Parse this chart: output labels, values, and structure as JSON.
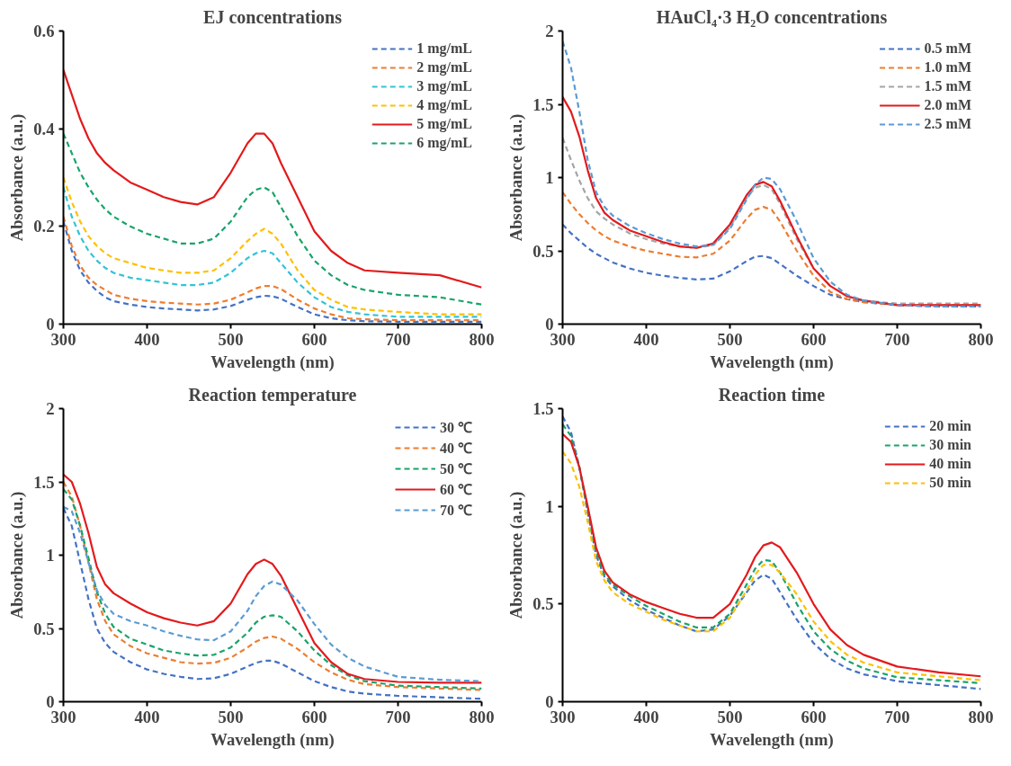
{
  "chart_data": [
    {
      "type": "line",
      "title": "EJ concentrations",
      "xlabel": "Wavelength (nm)",
      "ylabel": "Absorbance (a.u.)",
      "xlim": [
        300,
        800
      ],
      "xticks": [
        300,
        400,
        500,
        600,
        700,
        800
      ],
      "ylim": [
        0,
        0.6
      ],
      "yticks": [
        0,
        0.2,
        0.4,
        0.6
      ],
      "grid": false,
      "legend": "top right",
      "marker": "none",
      "x": [
        300,
        310,
        320,
        330,
        340,
        350,
        360,
        380,
        400,
        420,
        440,
        460,
        480,
        500,
        520,
        530,
        540,
        550,
        560,
        580,
        600,
        620,
        640,
        660,
        700,
        750,
        800
      ],
      "series": [
        {
          "name": "1 mg/mL",
          "color": "#4472c4",
          "line_style": "dashed",
          "values": [
            0.21,
            0.15,
            0.11,
            0.085,
            0.068,
            0.055,
            0.047,
            0.04,
            0.035,
            0.032,
            0.03,
            0.028,
            0.03,
            0.037,
            0.05,
            0.055,
            0.058,
            0.057,
            0.052,
            0.035,
            0.02,
            0.012,
            0.008,
            0.006,
            0.005,
            0.005,
            0.005
          ]
        },
        {
          "name": "2 mg/mL",
          "color": "#ed7d31",
          "line_style": "dashed",
          "values": [
            0.22,
            0.16,
            0.12,
            0.095,
            0.08,
            0.07,
            0.06,
            0.052,
            0.047,
            0.044,
            0.042,
            0.04,
            0.042,
            0.05,
            0.065,
            0.073,
            0.078,
            0.078,
            0.072,
            0.05,
            0.032,
            0.02,
            0.012,
            0.01,
            0.008,
            0.008,
            0.008
          ]
        },
        {
          "name": "3 mg/mL",
          "color": "#33c3d6",
          "line_style": "dashed",
          "values": [
            0.28,
            0.22,
            0.18,
            0.15,
            0.13,
            0.115,
            0.105,
            0.095,
            0.09,
            0.085,
            0.08,
            0.08,
            0.085,
            0.105,
            0.135,
            0.145,
            0.15,
            0.145,
            0.125,
            0.085,
            0.055,
            0.035,
            0.025,
            0.02,
            0.015,
            0.015,
            0.015
          ]
        },
        {
          "name": "4 mg/mL",
          "color": "#ffc000",
          "line_style": "dashed",
          "values": [
            0.3,
            0.25,
            0.21,
            0.18,
            0.16,
            0.145,
            0.135,
            0.125,
            0.115,
            0.11,
            0.105,
            0.105,
            0.11,
            0.135,
            0.17,
            0.185,
            0.195,
            0.185,
            0.165,
            0.11,
            0.07,
            0.05,
            0.035,
            0.03,
            0.025,
            0.02,
            0.02
          ]
        },
        {
          "name": "5 mg/mL",
          "color": "#e31a1c",
          "line_style": "solid",
          "values": [
            0.52,
            0.47,
            0.42,
            0.38,
            0.35,
            0.33,
            0.315,
            0.29,
            0.275,
            0.26,
            0.25,
            0.245,
            0.26,
            0.31,
            0.37,
            0.39,
            0.39,
            0.37,
            0.33,
            0.26,
            0.19,
            0.15,
            0.125,
            0.11,
            0.105,
            0.1,
            0.075
          ]
        },
        {
          "name": "6 mg/mL",
          "color": "#1aa36a",
          "line_style": "dashed",
          "values": [
            0.39,
            0.35,
            0.31,
            0.28,
            0.255,
            0.235,
            0.22,
            0.2,
            0.185,
            0.175,
            0.165,
            0.165,
            0.175,
            0.21,
            0.26,
            0.275,
            0.28,
            0.27,
            0.24,
            0.18,
            0.13,
            0.1,
            0.08,
            0.07,
            0.06,
            0.055,
            0.04
          ]
        }
      ]
    },
    {
      "type": "line",
      "title": "HAuCl₄·3 H₂O concentrations",
      "xlabel": "Wavelength (nm)",
      "ylabel": "Absorbance (a.u.)",
      "xlim": [
        300,
        800
      ],
      "xticks": [
        300,
        400,
        500,
        600,
        700,
        800
      ],
      "ylim": [
        0,
        2
      ],
      "yticks": [
        0,
        0.5,
        1,
        1.5,
        2
      ],
      "grid": false,
      "legend": "top right",
      "marker": "none",
      "x": [
        300,
        310,
        320,
        330,
        340,
        350,
        360,
        380,
        400,
        420,
        440,
        460,
        480,
        500,
        520,
        530,
        540,
        550,
        560,
        580,
        600,
        620,
        640,
        660,
        700,
        750,
        800
      ],
      "series": [
        {
          "name": "0.5 mM",
          "color": "#4472c4",
          "line_style": "dashed",
          "values": [
            0.68,
            0.62,
            0.57,
            0.52,
            0.48,
            0.45,
            0.42,
            0.38,
            0.35,
            0.33,
            0.315,
            0.305,
            0.31,
            0.36,
            0.43,
            0.46,
            0.465,
            0.45,
            0.41,
            0.33,
            0.26,
            0.2,
            0.17,
            0.15,
            0.13,
            0.12,
            0.12
          ]
        },
        {
          "name": "1.0 mM",
          "color": "#ed7d31",
          "line_style": "dashed",
          "values": [
            0.9,
            0.82,
            0.75,
            0.69,
            0.64,
            0.6,
            0.57,
            0.53,
            0.5,
            0.48,
            0.46,
            0.455,
            0.48,
            0.57,
            0.72,
            0.78,
            0.8,
            0.78,
            0.7,
            0.5,
            0.33,
            0.22,
            0.17,
            0.15,
            0.13,
            0.13,
            0.13
          ]
        },
        {
          "name": "1.5 mM",
          "color": "#a5a5a5",
          "line_style": "dashed",
          "values": [
            1.27,
            1.12,
            0.98,
            0.86,
            0.77,
            0.72,
            0.68,
            0.62,
            0.58,
            0.55,
            0.53,
            0.52,
            0.54,
            0.66,
            0.86,
            0.93,
            0.95,
            0.92,
            0.82,
            0.58,
            0.38,
            null,
            0.19,
            0.16,
            0.14,
            0.14,
            0.14
          ]
        },
        {
          "name": "2.0 mM",
          "color": "#e31a1c",
          "line_style": "solid",
          "values": [
            1.55,
            1.45,
            1.28,
            1.05,
            0.86,
            0.76,
            0.71,
            0.64,
            0.6,
            0.56,
            0.53,
            0.52,
            0.55,
            0.68,
            0.88,
            0.95,
            0.97,
            0.94,
            0.84,
            0.6,
            0.38,
            0.26,
            0.19,
            0.16,
            0.13,
            0.13,
            0.13
          ]
        },
        {
          "name": "2.5 mM",
          "color": "#5b9bd5",
          "line_style": "dashed",
          "values": [
            1.93,
            1.75,
            1.45,
            1.12,
            0.9,
            0.8,
            0.74,
            0.67,
            0.62,
            0.58,
            0.55,
            0.53,
            0.54,
            0.65,
            0.85,
            0.95,
            1.0,
            0.99,
            0.92,
            0.7,
            0.45,
            0.29,
            0.2,
            0.16,
            0.13,
            0.12,
            0.12
          ]
        }
      ]
    },
    {
      "type": "line",
      "title": "Reaction temperature",
      "xlabel": "Wavelength (nm)",
      "ylabel": "Absorbance (a.u.)",
      "xlim": [
        300,
        800
      ],
      "xticks": [
        300,
        400,
        500,
        600,
        700,
        800
      ],
      "ylim": [
        0,
        2
      ],
      "yticks": [
        0,
        0.5,
        1,
        1.5,
        2
      ],
      "grid": false,
      "legend": "top right",
      "marker": "none",
      "x": [
        300,
        310,
        320,
        330,
        340,
        350,
        360,
        380,
        400,
        420,
        440,
        460,
        480,
        500,
        520,
        530,
        540,
        550,
        560,
        580,
        600,
        620,
        640,
        660,
        700,
        750,
        800
      ],
      "series": [
        {
          "name": "30 ℃",
          "color": "#4472c4",
          "line_style": "dashed",
          "values": [
            1.32,
            1.2,
            0.95,
            0.7,
            0.5,
            0.4,
            0.34,
            0.27,
            0.22,
            0.19,
            0.17,
            0.155,
            0.16,
            0.19,
            0.24,
            0.265,
            0.28,
            0.28,
            0.26,
            0.2,
            0.14,
            0.1,
            0.07,
            0.055,
            0.04,
            0.03,
            0.02
          ]
        },
        {
          "name": "40 ℃",
          "color": "#ed7d31",
          "line_style": "dashed",
          "values": [
            1.5,
            1.4,
            1.2,
            0.95,
            0.7,
            0.55,
            0.46,
            0.38,
            0.33,
            0.3,
            0.27,
            0.26,
            0.265,
            0.3,
            0.37,
            0.41,
            0.435,
            0.445,
            0.43,
            0.36,
            0.27,
            0.2,
            0.15,
            0.12,
            0.1,
            0.09,
            0.08
          ]
        },
        {
          "name": "50 ℃",
          "color": "#1aa36a",
          "line_style": "dashed",
          "values": [
            1.45,
            1.38,
            1.2,
            0.98,
            0.75,
            0.6,
            0.51,
            0.43,
            0.39,
            0.35,
            0.33,
            0.315,
            0.32,
            0.37,
            0.47,
            0.54,
            0.58,
            0.59,
            0.58,
            0.48,
            0.35,
            0.25,
            0.18,
            0.14,
            0.11,
            0.1,
            0.09
          ]
        },
        {
          "name": "60 ℃",
          "color": "#e31a1c",
          "line_style": "solid",
          "values": [
            1.55,
            1.5,
            1.35,
            1.15,
            0.92,
            0.8,
            0.74,
            0.67,
            0.61,
            0.57,
            0.54,
            0.52,
            0.55,
            0.67,
            0.87,
            0.94,
            0.97,
            0.94,
            0.86,
            0.63,
            0.4,
            0.27,
            0.19,
            0.155,
            0.135,
            0.13,
            0.13
          ]
        },
        {
          "name": "70 ℃",
          "color": "#5b9bd5",
          "line_style": "dashed",
          "values": [
            1.33,
            1.3,
            1.15,
            0.95,
            0.76,
            0.66,
            0.6,
            0.55,
            0.52,
            0.48,
            0.45,
            0.425,
            0.42,
            0.48,
            0.62,
            0.72,
            0.79,
            0.82,
            0.8,
            0.69,
            0.53,
            0.39,
            0.3,
            0.24,
            0.17,
            0.15,
            0.14
          ]
        }
      ]
    },
    {
      "type": "line",
      "title": "Reaction time",
      "xlabel": "Wavelength (nm)",
      "ylabel": "Absorbance (a.u.)",
      "xlim": [
        300,
        800
      ],
      "xticks": [
        300,
        400,
        500,
        600,
        700,
        800
      ],
      "ylim": [
        0,
        1.5
      ],
      "yticks": [
        0,
        0.5,
        1,
        1.5
      ],
      "grid": false,
      "legend": "top right",
      "marker": "none",
      "x": [
        300,
        310,
        320,
        330,
        340,
        350,
        360,
        380,
        400,
        420,
        440,
        460,
        480,
        500,
        520,
        530,
        540,
        550,
        560,
        580,
        600,
        620,
        640,
        660,
        700,
        750,
        800
      ],
      "series": [
        {
          "name": "20 min",
          "color": "#4472c4",
          "line_style": "dashed",
          "values": [
            1.46,
            1.38,
            1.2,
            0.97,
            0.75,
            0.64,
            0.59,
            0.52,
            0.47,
            0.43,
            0.39,
            0.36,
            0.37,
            0.44,
            0.56,
            0.62,
            0.65,
            0.63,
            0.56,
            0.42,
            0.3,
            0.22,
            0.17,
            0.14,
            0.105,
            0.085,
            0.065
          ]
        },
        {
          "name": "30 min",
          "color": "#1aa36a",
          "line_style": "dashed",
          "values": [
            1.42,
            1.36,
            1.2,
            0.98,
            0.77,
            0.65,
            0.6,
            0.54,
            0.49,
            0.45,
            0.41,
            0.38,
            0.38,
            0.45,
            0.6,
            0.68,
            0.725,
            0.72,
            0.66,
            0.5,
            0.36,
            0.27,
            0.21,
            0.17,
            0.125,
            0.11,
            0.095
          ]
        },
        {
          "name": "40 min",
          "color": "#e31a1c",
          "line_style": "solid",
          "values": [
            1.37,
            1.33,
            1.2,
            1.0,
            0.79,
            0.67,
            0.61,
            0.55,
            0.51,
            0.48,
            0.45,
            0.43,
            0.43,
            0.5,
            0.65,
            0.74,
            0.8,
            0.815,
            0.79,
            0.66,
            0.5,
            0.37,
            0.29,
            0.24,
            0.18,
            0.15,
            0.13
          ]
        },
        {
          "name": "50 min",
          "color": "#ffc000",
          "line_style": "dashed",
          "values": [
            1.28,
            1.22,
            1.1,
            0.92,
            0.72,
            0.62,
            0.56,
            0.5,
            0.46,
            0.42,
            0.39,
            0.36,
            0.36,
            0.43,
            0.57,
            0.65,
            0.7,
            0.7,
            0.66,
            0.55,
            0.41,
            0.31,
            0.24,
            0.2,
            0.15,
            0.13,
            0.11
          ]
        }
      ]
    }
  ]
}
